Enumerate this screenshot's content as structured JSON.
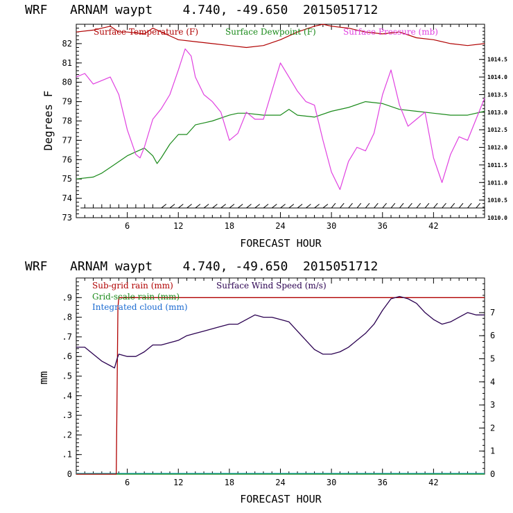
{
  "chart_data": [
    {
      "type": "line",
      "title": "WRF   ARNAM waypt    4.740, -49.650  2015051712",
      "xlabel": "FORECAST HOUR",
      "ylabel": "Degrees F",
      "xlim": [
        0,
        48
      ],
      "ylim": [
        73,
        83
      ],
      "y2lim": [
        1010.0,
        1015.5
      ],
      "x_ticks": [
        6,
        12,
        18,
        24,
        30,
        36,
        42
      ],
      "y_ticks": [
        73,
        74,
        75,
        76,
        77,
        78,
        79,
        80,
        81,
        82
      ],
      "y2_ticks": [
        "1010.0",
        "1010.5",
        "1011.0",
        "1011.5",
        "1012.0",
        "1012.5",
        "1013.0",
        "1013.5",
        "1014.0",
        "1014.5"
      ],
      "legend": [
        "Surface Temperature (F)",
        "Surface Dewpoint (F)",
        "Surface Pressure (mb)"
      ],
      "colors": {
        "temperature": "#b00000",
        "dewpoint": "#1a8a1a",
        "pressure": "#e040e0",
        "wind_barbs": "#000000"
      },
      "series": [
        {
          "name": "Surface Temperature (F)",
          "axis": "left",
          "x": [
            0,
            2,
            4,
            5,
            6,
            8,
            9,
            10,
            12,
            14,
            16,
            18,
            20,
            22,
            24,
            26,
            28,
            29,
            30,
            32,
            34,
            36,
            38,
            40,
            42,
            44,
            46,
            48
          ],
          "values": [
            82.6,
            82.7,
            82.9,
            82.6,
            82.6,
            82.5,
            82.8,
            82.6,
            82.2,
            82.1,
            82.0,
            81.9,
            81.8,
            81.9,
            82.2,
            82.6,
            82.9,
            83.0,
            82.9,
            82.8,
            82.6,
            82.5,
            82.6,
            82.3,
            82.2,
            82.0,
            81.9,
            82.0
          ]
        },
        {
          "name": "Surface Dewpoint (F)",
          "axis": "left",
          "x": [
            0,
            2,
            3,
            4,
            6,
            7,
            8,
            9,
            9.5,
            10,
            11,
            12,
            13,
            14,
            15,
            16,
            18,
            19,
            20,
            22,
            24,
            25,
            26,
            28,
            30,
            32,
            34,
            36,
            38,
            40,
            42,
            44,
            46,
            48
          ],
          "values": [
            75.0,
            75.1,
            75.3,
            75.6,
            76.2,
            76.4,
            76.6,
            76.2,
            75.8,
            76.1,
            76.8,
            77.3,
            77.3,
            77.8,
            77.9,
            78.0,
            78.3,
            78.4,
            78.4,
            78.3,
            78.3,
            78.6,
            78.3,
            78.2,
            78.5,
            78.7,
            79.0,
            78.9,
            78.6,
            78.5,
            78.4,
            78.3,
            78.3,
            78.5
          ]
        },
        {
          "name": "Surface Pressure (mb)",
          "axis": "right",
          "x": [
            0,
            1,
            2,
            3,
            4,
            5,
            6,
            7,
            7.5,
            8,
            9,
            10,
            11,
            12,
            12.8,
            13.5,
            14,
            15,
            16,
            17,
            18,
            19,
            20,
            21,
            22,
            23,
            24,
            25,
            26,
            27,
            28,
            29,
            30,
            31,
            32,
            33,
            34,
            35,
            36,
            37,
            38,
            39,
            40,
            41,
            42,
            43,
            44,
            45,
            46,
            47,
            48
          ],
          "values": [
            1014.0,
            1014.1,
            1013.8,
            1013.9,
            1014.0,
            1013.5,
            1012.5,
            1011.8,
            1011.7,
            1012.0,
            1012.8,
            1013.1,
            1013.5,
            1014.2,
            1014.8,
            1014.6,
            1014.0,
            1013.5,
            1013.3,
            1013.0,
            1012.2,
            1012.4,
            1013.0,
            1012.8,
            1012.8,
            1013.6,
            1014.4,
            1014.0,
            1013.6,
            1013.3,
            1013.2,
            1012.2,
            1011.3,
            1010.8,
            1011.6,
            1012.0,
            1011.9,
            1012.4,
            1013.5,
            1014.2,
            1013.2,
            1012.6,
            1012.8,
            1013.0,
            1011.7,
            1011.0,
            1011.8,
            1012.3,
            1012.2,
            1012.8,
            1013.4
          ]
        },
        {
          "name": "Wind barbs",
          "axis": "left",
          "level": 73.5
        }
      ]
    },
    {
      "type": "line",
      "title": "WRF   ARNAM waypt    4.740, -49.650  2015051712",
      "xlabel": "FORECAST HOUR",
      "ylabel": "mm",
      "xlim": [
        0,
        48
      ],
      "ylim": [
        0,
        1.0
      ],
      "y2lim": [
        0,
        8.5
      ],
      "x_ticks": [
        6,
        12,
        18,
        24,
        30,
        36,
        42
      ],
      "y_ticks": [
        "0",
        ".1",
        ".2",
        ".3",
        ".4",
        ".5",
        ".6",
        ".7",
        ".8",
        ".9"
      ],
      "y2_ticks": [
        "0",
        "1",
        "2",
        "3",
        "4",
        "5",
        "6",
        "7"
      ],
      "legend": [
        "Sub-grid rain (mm)",
        "Grid-scale rain (mm)",
        "Integrated cloud (mm)",
        "Surface Wind Speed (m/s)"
      ],
      "colors": {
        "subgrid": "#b00000",
        "gridscale": "#1a8a1a",
        "cloud": "#1a6ad0",
        "wind": "#2a0050",
        "teal_axis": "#1aa0b0"
      },
      "series": [
        {
          "name": "Sub-grid rain (mm)",
          "axis": "left",
          "x": [
            0,
            4.5,
            4.7,
            4.9,
            5.0,
            48
          ],
          "values": [
            0,
            0,
            0.0,
            0.85,
            0.9,
            0.9
          ]
        },
        {
          "name": "Grid-scale rain (mm)",
          "axis": "left",
          "x": [
            0,
            48
          ],
          "values": [
            0,
            0
          ]
        },
        {
          "name": "Integrated cloud (mm)",
          "axis": "left",
          "x": [
            0,
            48
          ],
          "values": [
            0,
            0
          ]
        },
        {
          "name": "Surface Wind Speed (m/s)",
          "axis": "right",
          "x": [
            0,
            1,
            2,
            3,
            4,
            4.5,
            4.8,
            5,
            6,
            7,
            8,
            9,
            10,
            11,
            12,
            13,
            14,
            15,
            16,
            17,
            18,
            19,
            20,
            21,
            22,
            23,
            24,
            25,
            26,
            27,
            28,
            29,
            30,
            31,
            32,
            33,
            34,
            35,
            36,
            37,
            38,
            39,
            40,
            41,
            42,
            43,
            44,
            45,
            46,
            47,
            48
          ],
          "values": [
            5.5,
            5.5,
            5.2,
            4.9,
            4.7,
            4.6,
            5.0,
            5.2,
            5.1,
            5.1,
            5.3,
            5.6,
            5.6,
            5.7,
            5.8,
            6.0,
            6.1,
            6.2,
            6.3,
            6.4,
            6.5,
            6.5,
            6.7,
            6.9,
            6.8,
            6.8,
            6.7,
            6.6,
            6.2,
            5.8,
            5.4,
            5.2,
            5.2,
            5.3,
            5.5,
            5.8,
            6.1,
            6.5,
            7.1,
            7.6,
            7.7,
            7.6,
            7.4,
            7.0,
            6.7,
            6.5,
            6.6,
            6.8,
            7.0,
            6.9,
            6.9
          ]
        }
      ]
    }
  ]
}
